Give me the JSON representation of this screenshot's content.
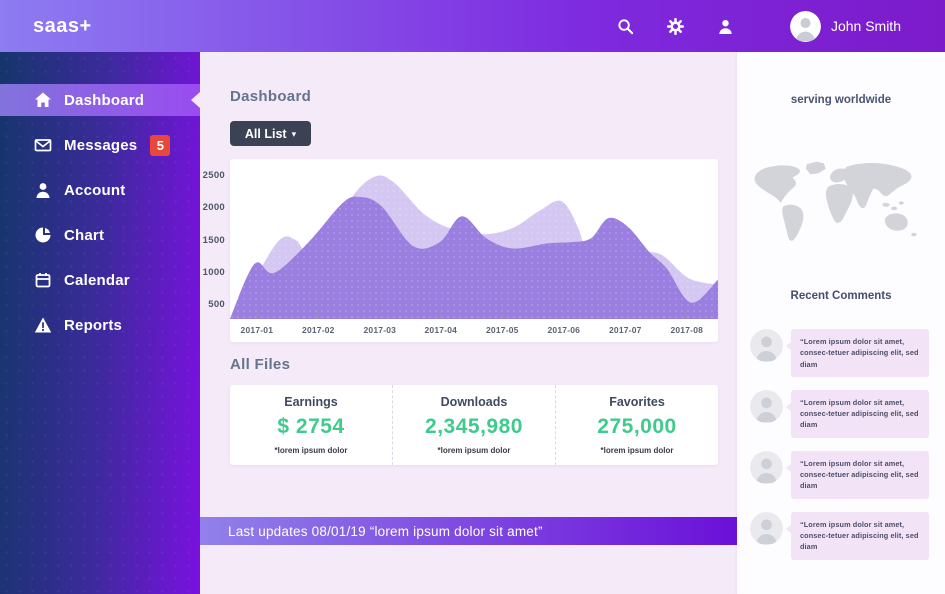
{
  "topbar": {
    "logo": "saas+",
    "user_name": "John Smith"
  },
  "sidebar": {
    "items": [
      {
        "label": "Dashboard",
        "icon": "home",
        "active": true
      },
      {
        "label": "Messages",
        "icon": "envelope",
        "badge": "5"
      },
      {
        "label": "Account",
        "icon": "person"
      },
      {
        "label": "Chart",
        "icon": "pie-chart"
      },
      {
        "label": "Calendar",
        "icon": "calendar"
      },
      {
        "label": "Reports",
        "icon": "warning"
      }
    ]
  },
  "main": {
    "title": "Dashboard",
    "filter_label": "All List",
    "filter_caret": "▾",
    "all_files_title": "All Files",
    "stats": [
      {
        "label": "Earnings",
        "value": "$ 2754",
        "caption": "*lorem ipsum dolor"
      },
      {
        "label": "Downloads",
        "value": "2,345,980",
        "caption": "*lorem ipsum dolor"
      },
      {
        "label": "Favorites",
        "value": "275,000",
        "caption": "*lorem ipsum dolor"
      }
    ],
    "footer_note": "Last updates 08/01/19 “lorem ipsum dolor sit amet”"
  },
  "right_panel": {
    "worldwide_title": "serving worldwide",
    "comments_title": "Recent Comments",
    "comments": [
      {
        "text": "“Lorem ipsum dolor sit amet, consec-tetuer adipiscing elit, sed diam"
      },
      {
        "text": "“Lorem ipsum dolor sit amet, consec-tetuer adipiscing elit, sed diam"
      },
      {
        "text": "“Lorem ipsum dolor sit amet, consec-tetuer adipiscing elit, sed diam"
      },
      {
        "text": "“Lorem ipsum dolor sit amet, consec-tetuer adipiscing elit, sed diam"
      }
    ]
  },
  "colors": {
    "topbar_gradient": [
      "#8d7cf2",
      "#7c1bca"
    ],
    "sidebar_gradient": [
      "#16356c",
      "#7a11e0"
    ],
    "active_item_gradient": [
      "#8273dc",
      "#9a4cf0"
    ],
    "badge_red": "#e8483b",
    "main_background": "#f5ebf8",
    "button_dark": "#3b4253",
    "stat_green": "#3ecb8c",
    "footer_gradient": [
      "#9181ea",
      "#6b10d8"
    ],
    "bubble_background": "#f2e3f6",
    "map_gray": "#d2d4d9"
  },
  "chart_data": {
    "type": "area",
    "title": "",
    "xlabel": "",
    "ylabel": "",
    "categories": [
      "2017-01",
      "2017-02",
      "2017-03",
      "2017-04",
      "2017-05",
      "2017-06",
      "2017-07",
      "2017-08"
    ],
    "category_x": [
      0.055,
      0.181,
      0.307,
      0.432,
      0.558,
      0.684,
      0.81,
      0.936
    ],
    "yticks": [
      500,
      1000,
      1500,
      2000,
      2500
    ],
    "ylim": [
      250,
      2550
    ],
    "grid": false,
    "legend": false,
    "series": [
      {
        "name": "back",
        "color": "#d4c8f2",
        "points": [
          [
            0,
            270
          ],
          [
            0.045,
            820
          ],
          [
            0.1,
            1480
          ],
          [
            0.135,
            1490
          ],
          [
            0.18,
            1150
          ],
          [
            0.245,
            2100
          ],
          [
            0.295,
            2470
          ],
          [
            0.335,
            2390
          ],
          [
            0.4,
            1880
          ],
          [
            0.46,
            1650
          ],
          [
            0.52,
            1580
          ],
          [
            0.58,
            1680
          ],
          [
            0.635,
            1950
          ],
          [
            0.68,
            2090
          ],
          [
            0.715,
            1650
          ],
          [
            0.74,
            1020
          ],
          [
            0.78,
            1380
          ],
          [
            0.84,
            1310
          ],
          [
            0.885,
            1260
          ],
          [
            0.94,
            900
          ],
          [
            1,
            800
          ]
        ]
      },
      {
        "name": "front",
        "color": "#9b7fe0",
        "points": [
          [
            0,
            270
          ],
          [
            0.05,
            1120
          ],
          [
            0.09,
            980
          ],
          [
            0.16,
            1450
          ],
          [
            0.23,
            2060
          ],
          [
            0.265,
            2160
          ],
          [
            0.31,
            2020
          ],
          [
            0.375,
            1400
          ],
          [
            0.43,
            1460
          ],
          [
            0.475,
            1860
          ],
          [
            0.525,
            1520
          ],
          [
            0.58,
            1360
          ],
          [
            0.65,
            1440
          ],
          [
            0.7,
            1460
          ],
          [
            0.74,
            1520
          ],
          [
            0.775,
            1830
          ],
          [
            0.815,
            1700
          ],
          [
            0.86,
            1300
          ],
          [
            0.895,
            1050
          ],
          [
            0.945,
            520
          ],
          [
            1,
            880
          ]
        ]
      }
    ]
  }
}
